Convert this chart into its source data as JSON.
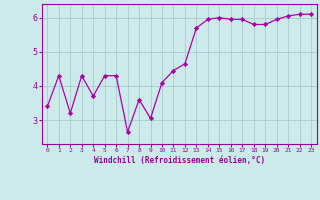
{
  "x": [
    0,
    1,
    2,
    3,
    4,
    5,
    6,
    7,
    8,
    9,
    10,
    11,
    12,
    13,
    14,
    15,
    16,
    17,
    18,
    19,
    20,
    21,
    22,
    23
  ],
  "y": [
    3.4,
    4.3,
    3.2,
    4.3,
    3.7,
    4.3,
    4.3,
    2.65,
    3.6,
    3.05,
    4.1,
    4.45,
    4.65,
    5.7,
    5.95,
    6.0,
    5.95,
    5.95,
    5.8,
    5.8,
    5.95,
    6.05,
    6.1,
    6.1
  ],
  "line_color": "#aa00aa",
  "marker": "D",
  "marker_size": 2.2,
  "xlabel": "Windchill (Refroidissement éolien,°C)",
  "ylabel": "",
  "xlim": [
    -0.5,
    23.5
  ],
  "ylim": [
    2.3,
    6.4
  ],
  "yticks": [
    3,
    4,
    5,
    6
  ],
  "xticks": [
    0,
    1,
    2,
    3,
    4,
    5,
    6,
    7,
    8,
    9,
    10,
    11,
    12,
    13,
    14,
    15,
    16,
    17,
    18,
    19,
    20,
    21,
    22,
    23
  ],
  "background_color": "#cdeaea",
  "grid_color": "#aacccc",
  "tick_color": "#990099",
  "label_color": "#990099",
  "spine_color": "#990099"
}
